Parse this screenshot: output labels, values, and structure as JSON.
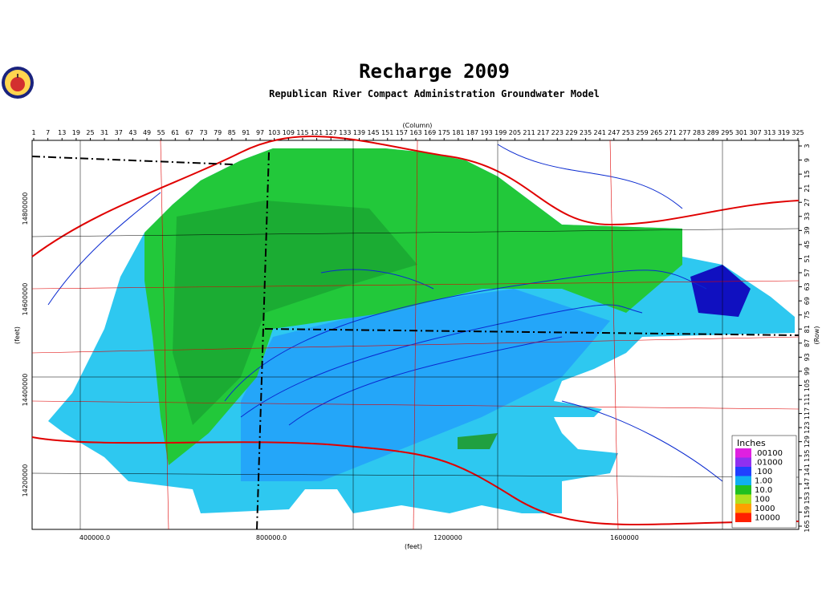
{
  "title": "Recharge 2009",
  "subtitle": "Republican River Compact Administration Groundwater Model",
  "top_axis": {
    "label": "(Column)",
    "ticks": [
      1,
      7,
      13,
      19,
      25,
      31,
      37,
      43,
      49,
      55,
      61,
      67,
      73,
      79,
      85,
      91,
      97,
      103,
      109,
      115,
      121,
      127,
      133,
      139,
      145,
      151,
      157,
      163,
      169,
      175,
      181,
      187,
      193,
      199,
      205,
      211,
      217,
      223,
      229,
      235,
      241,
      247,
      253,
      259,
      265,
      271,
      277,
      283,
      289,
      295,
      301,
      307,
      313,
      319,
      325
    ]
  },
  "right_axis": {
    "label": "(Row)",
    "ticks": [
      3,
      9,
      15,
      21,
      27,
      33,
      39,
      45,
      51,
      57,
      63,
      69,
      75,
      81,
      87,
      93,
      99,
      105,
      111,
      117,
      123,
      129,
      135,
      141,
      147,
      153,
      159,
      165
    ]
  },
  "left_axis": {
    "label": "(feet)",
    "ticks": [
      "14800000",
      "14600000",
      "14400000",
      "14200000"
    ]
  },
  "bottom_axis": {
    "label": "(feet)",
    "ticks": [
      "400000.0",
      "800000.0",
      "1200000",
      "1600000"
    ]
  },
  "legend": {
    "title": "Inches",
    "entries": [
      ".00100",
      ".01000",
      ".100",
      "1.00",
      "10.0",
      "100",
      "1000",
      "10000"
    ],
    "colors": [
      "#e020e0",
      "#9030f0",
      "#2040ff",
      "#10b0f0",
      "#20c020",
      "#b0e020",
      "#ffa000",
      "#ff2000"
    ]
  }
}
